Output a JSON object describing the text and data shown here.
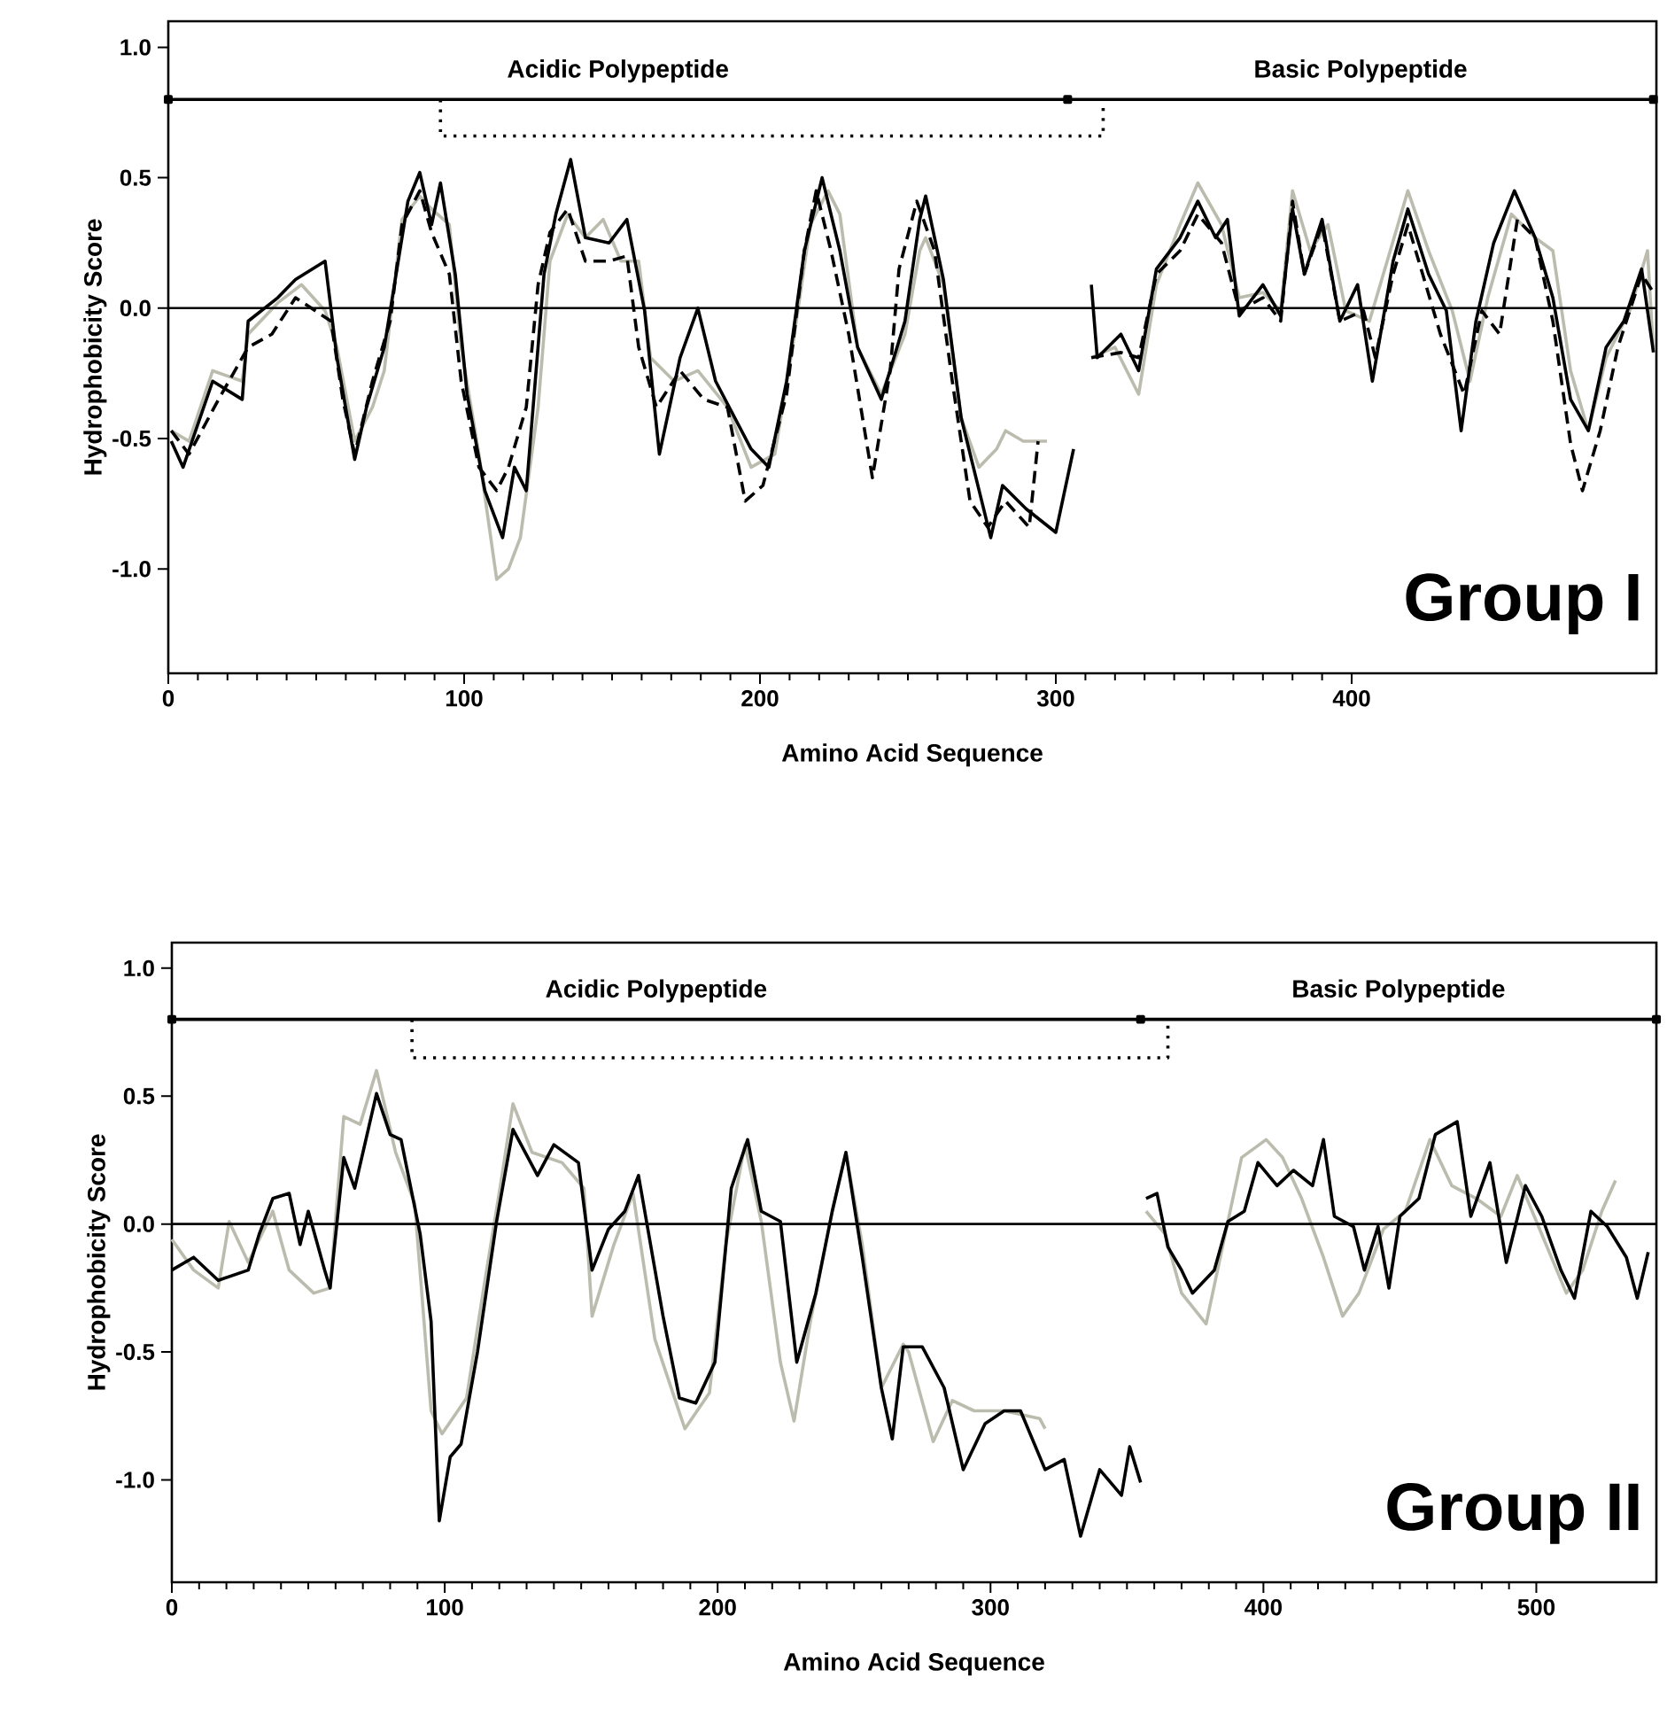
{
  "chart_data": [
    {
      "type": "line",
      "xlabel": "Amino Acid Sequence",
      "ylabel": "Hydrophobicity Score",
      "xlim": [
        0,
        503
      ],
      "ylim": [
        -1.4,
        1.1
      ],
      "xticks": [
        0,
        100,
        200,
        300,
        400
      ],
      "yticks": [
        {
          "value": -1,
          "label": "-1.0"
        },
        {
          "value": -0.5,
          "label": "-0.5"
        },
        {
          "value": 0,
          "label": "0.0"
        },
        {
          "value": 0.5,
          "label": "0.5"
        },
        {
          "value": 1,
          "label": "1.0"
        }
      ],
      "ref_lines": [
        {
          "axis": "y",
          "value": 0,
          "color": "#000000"
        }
      ],
      "annotations": [
        "Acidic Polypeptide",
        "Basic Polypeptide",
        "Group I"
      ],
      "series": [
        {
          "color": "#000000",
          "line_style": "solid",
          "marker": "square",
          "x": [
            0,
            304,
            502
          ],
          "values": [
            0.8,
            0.8,
            0.8
          ]
        },
        {
          "color": "#000000",
          "line_style": "dotted",
          "marker": "none",
          "x": [
            92,
            92,
            316,
            316
          ],
          "values": [
            0.8,
            0.66,
            0.66,
            0.8
          ]
        },
        {
          "color": "#bcbcae",
          "line_style": "solid",
          "marker": "none",
          "x": [
            1,
            7,
            15,
            25,
            27,
            37,
            45,
            53,
            57,
            63,
            69,
            73,
            79,
            85,
            89,
            95,
            99,
            105,
            111,
            115,
            119,
            125,
            129,
            135,
            141,
            147,
            153,
            159,
            163,
            171,
            179,
            189,
            197,
            205,
            211,
            217,
            223,
            227,
            233,
            241,
            249,
            254,
            256,
            262,
            268,
            274,
            280,
            283,
            289,
            297,
            305,
            312,
            320,
            328,
            334,
            342,
            348,
            356,
            362,
            370,
            376,
            380,
            386,
            392,
            398,
            406,
            412,
            419,
            426,
            434,
            440,
            446,
            454,
            462,
            468,
            474,
            480,
            486,
            494,
            500,
            502
          ],
          "values": [
            -0.47,
            -0.51,
            -0.24,
            -0.28,
            -0.1,
            0.02,
            0.09,
            -0.01,
            -0.15,
            -0.51,
            -0.38,
            -0.24,
            0.34,
            0.43,
            0.38,
            0.32,
            -0.15,
            -0.56,
            -1.04,
            -1.0,
            -0.88,
            -0.38,
            0.18,
            0.36,
            0.27,
            0.34,
            0.18,
            0.18,
            -0.19,
            -0.28,
            -0.24,
            -0.38,
            -0.61,
            -0.56,
            -0.15,
            0.32,
            0.45,
            0.36,
            -0.15,
            -0.33,
            -0.1,
            0.22,
            0.27,
            0.09,
            -0.42,
            -0.61,
            -0.54,
            -0.47,
            -0.51,
            -0.51,
            null,
            -0.19,
            -0.15,
            -0.33,
            0.09,
            0.32,
            0.48,
            0.32,
            0.04,
            0.06,
            -0.01,
            0.45,
            0.22,
            0.32,
            -0.01,
            -0.05,
            0.18,
            0.45,
            0.22,
            -0.01,
            -0.28,
            0.04,
            0.36,
            0.27,
            0.22,
            -0.24,
            -0.47,
            -0.19,
            -0.01,
            0.22,
            -0.17
          ]
        },
        {
          "color": "#000000",
          "line_style": "dashed",
          "marker": "none",
          "x": [
            1,
            7,
            17,
            27,
            35,
            43,
            55,
            59,
            63,
            69,
            75,
            79,
            85,
            89,
            95,
            99,
            105,
            111,
            115,
            121,
            125,
            129,
            135,
            141,
            149,
            155,
            159,
            165,
            173,
            181,
            189,
            195,
            201,
            209,
            215,
            219,
            224,
            230,
            238,
            244,
            247,
            253,
            259,
            265,
            271,
            277,
            283,
            291,
            294,
            303,
            312,
            322,
            328,
            334,
            342,
            348,
            356,
            362,
            370,
            376,
            380,
            384,
            390,
            396,
            404,
            408,
            414,
            419,
            424,
            430,
            438,
            444,
            450,
            456,
            462,
            468,
            474,
            478,
            484,
            490,
            498,
            502
          ],
          "values": [
            -0.47,
            -0.56,
            -0.35,
            -0.15,
            -0.1,
            0.04,
            -0.05,
            -0.35,
            -0.56,
            -0.28,
            -0.05,
            0.32,
            0.45,
            0.29,
            0.13,
            -0.28,
            -0.61,
            -0.7,
            -0.61,
            -0.38,
            0.09,
            0.29,
            0.38,
            0.18,
            0.18,
            0.2,
            -0.15,
            -0.38,
            -0.24,
            -0.35,
            -0.38,
            -0.74,
            -0.68,
            -0.33,
            0.22,
            0.45,
            0.22,
            -0.1,
            -0.65,
            -0.24,
            0.15,
            0.41,
            0.22,
            -0.28,
            -0.74,
            -0.84,
            -0.74,
            -0.84,
            -0.51,
            null,
            -0.19,
            -0.17,
            -0.19,
            0.13,
            0.22,
            0.36,
            0.25,
            -0.01,
            0.04,
            -0.05,
            0.41,
            0.13,
            0.32,
            -0.05,
            -0.01,
            -0.19,
            0.13,
            0.32,
            0.13,
            -0.1,
            -0.33,
            -0.01,
            -0.1,
            0.34,
            0.27,
            -0.05,
            -0.52,
            -0.7,
            -0.47,
            -0.15,
            0.13,
            0.06
          ]
        },
        {
          "color": "#000000",
          "line_style": "solid",
          "marker": "none",
          "x": [
            1,
            5,
            15,
            25,
            27,
            37,
            43,
            53,
            57,
            63,
            67,
            73,
            81,
            85,
            89,
            92,
            97,
            101,
            107,
            113,
            117,
            121,
            127,
            131,
            136,
            141,
            149,
            155,
            161,
            166,
            173,
            179,
            185,
            197,
            203,
            209,
            215,
            221,
            227,
            233,
            241,
            249,
            254,
            256,
            262,
            268,
            278,
            282,
            290,
            300,
            306,
            309,
            312,
            314,
            322,
            328,
            334,
            342,
            348,
            354,
            358,
            362,
            370,
            376,
            380,
            384,
            390,
            396,
            402,
            407,
            414,
            419,
            426,
            432,
            437,
            442,
            448,
            455,
            462,
            468,
            474,
            480,
            486,
            492,
            498,
            502
          ],
          "values": [
            -0.51,
            -0.61,
            -0.28,
            -0.35,
            -0.05,
            0.04,
            0.11,
            0.18,
            -0.19,
            -0.58,
            -0.38,
            -0.15,
            0.41,
            0.52,
            0.32,
            0.48,
            0.13,
            -0.33,
            -0.7,
            -0.88,
            -0.61,
            -0.7,
            0.13,
            0.36,
            0.57,
            0.27,
            0.25,
            0.34,
            -0.01,
            -0.56,
            -0.19,
            0,
            -0.28,
            -0.54,
            -0.61,
            -0.28,
            0.22,
            0.5,
            0.22,
            -0.15,
            -0.35,
            -0.05,
            0.34,
            0.43,
            0.11,
            -0.42,
            -0.88,
            -0.68,
            -0.77,
            -0.86,
            -0.54,
            null,
            0.09,
            -0.19,
            -0.1,
            -0.24,
            0.15,
            0.27,
            0.41,
            0.27,
            0.34,
            -0.03,
            0.09,
            -0.03,
            0.38,
            0.13,
            0.34,
            -0.05,
            0.09,
            -0.28,
            0.18,
            0.38,
            0.13,
            -0.01,
            -0.47,
            -0.05,
            0.25,
            0.45,
            0.27,
            0.04,
            -0.35,
            -0.47,
            -0.15,
            -0.05,
            0.15,
            -0.17
          ]
        }
      ]
    },
    {
      "type": "line",
      "xlabel": "Amino Acid Sequence",
      "ylabel": "Hydrophobicity Score",
      "xlim": [
        0,
        544
      ],
      "ylim": [
        -1.4,
        1.1
      ],
      "xticks": [
        0,
        100,
        200,
        300,
        400,
        500
      ],
      "yticks": [
        {
          "value": -1,
          "label": "-1.0"
        },
        {
          "value": -0.5,
          "label": "-0.5"
        },
        {
          "value": 0,
          "label": "0.0"
        },
        {
          "value": 0.5,
          "label": "0.5"
        },
        {
          "value": 1,
          "label": "1.0"
        }
      ],
      "ref_lines": [
        {
          "axis": "y",
          "value": 0,
          "color": "#000000"
        }
      ],
      "annotations": [
        "Acidic Polypeptide",
        "Basic Polypeptide",
        "Group II"
      ],
      "series": [
        {
          "color": "#000000",
          "line_style": "solid",
          "marker": "square",
          "x": [
            0,
            355,
            544
          ],
          "values": [
            0.8,
            0.8,
            0.8
          ]
        },
        {
          "color": "#000000",
          "line_style": "dotted",
          "marker": "none",
          "x": [
            88,
            88,
            365,
            365
          ],
          "values": [
            0.8,
            0.65,
            0.65,
            0.8
          ]
        },
        {
          "color": "#bcbcae",
          "line_style": "solid",
          "marker": "none",
          "x": [
            0,
            8,
            17,
            21,
            28,
            37,
            43,
            52,
            58,
            63,
            69,
            75,
            82,
            89,
            95,
            99,
            108,
            114,
            121,
            125,
            132,
            143,
            151,
            154,
            162,
            169,
            177,
            188,
            197,
            203,
            210,
            216,
            223,
            228,
            234,
            242,
            247,
            253,
            260,
            268,
            270,
            279,
            286,
            294,
            305,
            318,
            320,
            338,
            357,
            364,
            370,
            379,
            386,
            392,
            401,
            407,
            414,
            422,
            429,
            435,
            444,
            452,
            461,
            469,
            478,
            487,
            493,
            502,
            511,
            517,
            524,
            529
          ],
          "values": [
            -0.06,
            -0.18,
            -0.25,
            0.01,
            -0.15,
            0.05,
            -0.18,
            -0.27,
            -0.25,
            0.42,
            0.39,
            0.6,
            0.28,
            0.08,
            -0.73,
            -0.82,
            -0.68,
            -0.27,
            0.19,
            0.47,
            0.28,
            0.24,
            0.14,
            -0.36,
            -0.08,
            0.12,
            -0.45,
            -0.8,
            -0.66,
            -0.08,
            0.31,
            0.01,
            -0.54,
            -0.77,
            -0.38,
            0.05,
            0.28,
            -0.08,
            -0.64,
            -0.47,
            -0.5,
            -0.85,
            -0.69,
            -0.73,
            -0.73,
            -0.76,
            -0.8,
            null,
            0.05,
            -0.04,
            -0.27,
            -0.39,
            -0.04,
            0.26,
            0.33,
            0.26,
            0.1,
            -0.13,
            -0.36,
            -0.27,
            -0.02,
            0.05,
            0.33,
            0.15,
            0.1,
            0.03,
            0.19,
            -0.04,
            -0.27,
            -0.18,
            0.05,
            0.17
          ]
        },
        {
          "color": "#000000",
          "line_style": "solid",
          "marker": "none",
          "x": [
            0,
            8,
            17,
            28,
            32,
            37,
            43,
            47,
            50,
            56,
            58,
            63,
            67,
            75,
            80,
            84,
            91,
            95,
            98,
            102,
            106,
            112,
            119,
            125,
            134,
            140,
            149,
            154,
            160,
            166,
            171,
            180,
            186,
            192,
            199,
            205,
            211,
            216,
            223,
            229,
            236,
            242,
            247,
            253,
            260,
            264,
            268,
            275,
            283,
            290,
            298,
            305,
            311,
            320,
            327,
            333,
            340,
            348,
            351,
            355,
            356,
            357,
            361,
            365,
            370,
            374,
            382,
            387,
            393,
            398,
            405,
            411,
            418,
            422,
            426,
            433,
            437,
            442,
            446,
            450,
            457,
            463,
            471,
            476,
            483,
            489,
            496,
            502,
            509,
            514,
            520,
            526,
            533,
            537,
            541
          ],
          "values": [
            -0.18,
            -0.13,
            -0.22,
            -0.18,
            -0.04,
            0.1,
            0.12,
            -0.08,
            0.05,
            -0.18,
            -0.25,
            0.26,
            0.14,
            0.51,
            0.35,
            0.33,
            -0.04,
            -0.38,
            -1.16,
            -0.91,
            -0.86,
            -0.5,
            0.01,
            0.37,
            0.19,
            0.31,
            0.24,
            -0.18,
            -0.02,
            0.05,
            0.19,
            -0.36,
            -0.68,
            -0.7,
            -0.54,
            0.14,
            0.33,
            0.05,
            0.01,
            -0.54,
            -0.27,
            0.05,
            0.28,
            -0.13,
            -0.64,
            -0.84,
            -0.48,
            -0.48,
            -0.64,
            -0.96,
            -0.78,
            -0.73,
            -0.73,
            -0.96,
            -0.92,
            -1.22,
            -0.96,
            -1.06,
            -0.87,
            -1.01,
            null,
            0.1,
            0.12,
            -0.09,
            -0.18,
            -0.27,
            -0.18,
            0.01,
            0.05,
            0.24,
            0.15,
            0.21,
            0.15,
            0.33,
            0.03,
            -0.01,
            -0.18,
            -0.01,
            -0.25,
            0.03,
            0.1,
            0.35,
            0.4,
            0.03,
            0.24,
            -0.15,
            0.15,
            0.03,
            -0.18,
            -0.29,
            0.05,
            -0.01,
            -0.13,
            -0.29,
            -0.11
          ]
        }
      ]
    }
  ]
}
